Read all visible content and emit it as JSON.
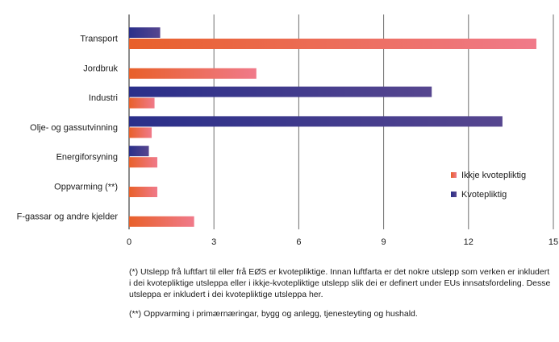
{
  "chart_data": {
    "type": "bar",
    "orientation": "horizontal",
    "categories": [
      "Transport",
      "Jordbruk",
      "Industri",
      "Olje- og gassutvinning",
      "Energiforsyning",
      "Oppvarming (**)",
      "F-gassar og andre kjelder"
    ],
    "series": [
      {
        "name": "Kvotepliktig",
        "values": [
          1.1,
          0,
          10.7,
          13.2,
          0.7,
          0,
          0
        ],
        "color": "#3a3a8c"
      },
      {
        "name": "Ikkje kvotepliktig",
        "values": [
          14.4,
          4.5,
          0.9,
          0.8,
          1.0,
          1.0,
          2.3
        ],
        "color": "#ee6b6b"
      }
    ],
    "xlim": [
      0,
      15
    ],
    "xticks": [
      "0",
      "3",
      "6",
      "9",
      "12",
      "15"
    ],
    "grid": "vertical",
    "legend": {
      "placement": "right",
      "entries": [
        "Ikkje kvotepliktig",
        "Kvotepliktig"
      ]
    }
  },
  "colors": {
    "ikkje_start": "#e8602a",
    "ikkje_end": "#f07a8a",
    "kvote_start": "#2a2f8a",
    "kvote_end": "#56468f"
  },
  "notes": {
    "note1": "(*)  Utslepp frå luftfart til eller frå EØS er kvotepliktige. Innan luftfarta er det nokre utslepp som verken er inkludert i dei kvotepliktige utsleppa eller i ikkje-kvotepliktige utslepp slik dei er definert under EUs innsatsfordeling. Desse utsleppa er inkludert i dei kvotepliktige utsleppa her.",
    "note2": "(**) Oppvarming i primærnæringar, bygg og anlegg, tjenesteyting og hushald."
  }
}
